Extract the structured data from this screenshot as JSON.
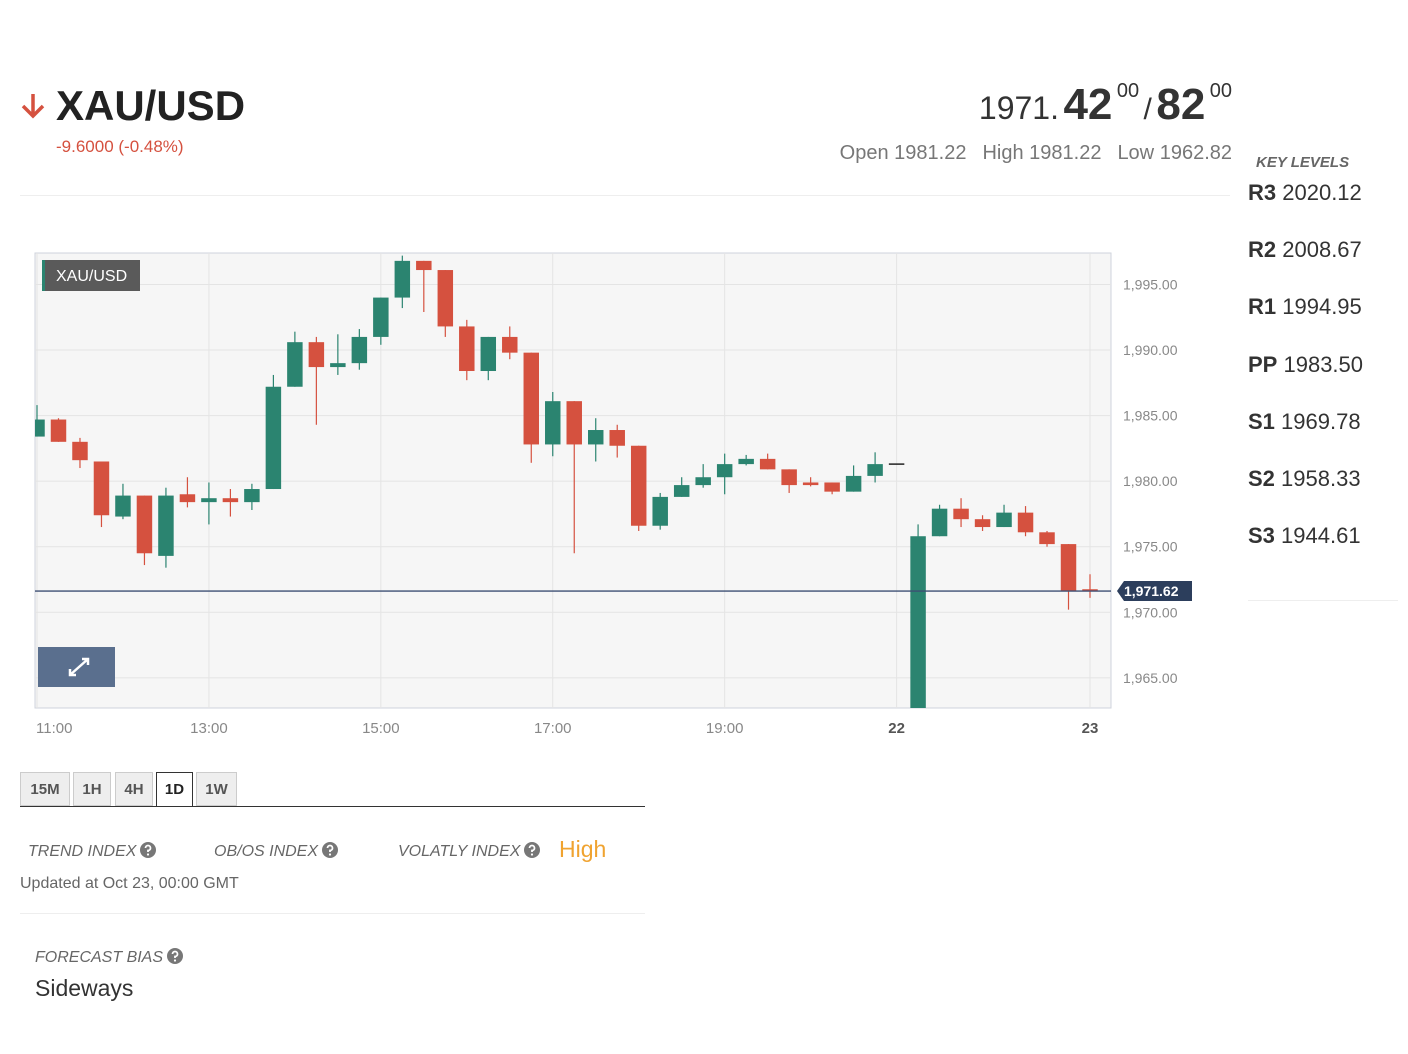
{
  "header": {
    "symbol": "XAU/USD",
    "change": "-9.6000 (-0.48%)"
  },
  "quote": {
    "bid_int": "1971.",
    "bid_dec": "42",
    "bid_sup": "00",
    "sep": "/",
    "ask_dec": "82",
    "ask_sup": "00",
    "stats": [
      {
        "label": "Open",
        "value": "1981.22"
      },
      {
        "label": "High",
        "value": "1981.22"
      },
      {
        "label": "Low",
        "value": "1962.82"
      }
    ]
  },
  "key_levels": {
    "title": "KEY LEVELS",
    "levels": [
      {
        "label": "R3",
        "value": "2020.12"
      },
      {
        "label": "R2",
        "value": "2008.67"
      },
      {
        "label": "R1",
        "value": "1994.95"
      },
      {
        "label": "PP",
        "value": "1983.50"
      },
      {
        "label": "S1",
        "value": "1969.78"
      },
      {
        "label": "S2",
        "value": "1958.33"
      },
      {
        "label": "S3",
        "value": "1944.61"
      }
    ]
  },
  "chart_data": {
    "type": "candlestick",
    "title": "XAU/USD",
    "categories": [
      "11:00",
      null,
      null,
      null,
      null,
      null,
      null,
      null,
      "13:00",
      null,
      null,
      null,
      null,
      null,
      null,
      null,
      "15:00",
      null,
      null,
      null,
      null,
      null,
      null,
      null,
      "17:00",
      null,
      null,
      null,
      null,
      null,
      null,
      null,
      "19:00",
      null,
      null,
      null,
      null,
      null,
      null,
      null,
      "22",
      null,
      null,
      null,
      null,
      null,
      null,
      null,
      null,
      "23"
    ],
    "open": [
      1983.4,
      1984.7,
      1983.0,
      1981.5,
      1977.3,
      1978.9,
      1974.3,
      1979.0,
      1978.4,
      1978.7,
      1978.4,
      1979.4,
      1987.2,
      1990.6,
      1988.7,
      1989.0,
      1991.0,
      1994.0,
      1996.8,
      1996.1,
      1991.8,
      1988.4,
      1991.0,
      1989.8,
      1982.8,
      1986.1,
      1982.8,
      1983.9,
      1982.7,
      1976.6,
      1978.8,
      1979.7,
      1980.3,
      1981.3,
      1981.7,
      1980.9,
      1979.9,
      1979.9,
      1979.2,
      1980.4,
      1981.3,
      1962.5,
      1975.8,
      1977.9,
      1977.1,
      1976.5,
      1977.6,
      1976.1,
      1975.2,
      1971.7
    ],
    "high": [
      1985.8,
      1984.8,
      1983.3,
      1981.5,
      1979.8,
      1978.9,
      1979.5,
      1980.3,
      1979.9,
      1979.4,
      1979.8,
      1988.1,
      1991.4,
      1991.0,
      1991.2,
      1991.6,
      1994.0,
      1997.2,
      1996.8,
      1996.1,
      1992.3,
      1991.0,
      1991.8,
      1989.8,
      1986.8,
      1986.1,
      1984.8,
      1984.3,
      1982.7,
      1979.1,
      1980.3,
      1981.3,
      1982.1,
      1982.0,
      1982.1,
      1980.9,
      1980.3,
      1979.9,
      1981.2,
      1982.2,
      1981.3,
      1976.7,
      1978.2,
      1978.7,
      1977.4,
      1978.2,
      1978.1,
      1976.2,
      1975.2,
      1972.9
    ],
    "low": [
      1983.4,
      1983.0,
      1981.0,
      1976.5,
      1977.1,
      1973.6,
      1973.4,
      1978.0,
      1976.7,
      1977.3,
      1977.8,
      1979.4,
      1987.2,
      1984.3,
      1988.1,
      1988.5,
      1990.4,
      1993.2,
      1992.9,
      1991.0,
      1987.7,
      1987.7,
      1989.3,
      1981.4,
      1981.9,
      1974.5,
      1981.5,
      1981.8,
      1976.2,
      1976.3,
      1978.8,
      1979.5,
      1979.0,
      1981.2,
      1980.9,
      1979.1,
      1979.6,
      1979.0,
      1979.2,
      1979.9,
      1981.3,
      1962.5,
      1975.8,
      1976.5,
      1976.2,
      1976.5,
      1975.8,
      1975.0,
      1970.2,
      1971.1
    ],
    "close": [
      1984.7,
      1983.0,
      1981.6,
      1977.4,
      1978.9,
      1974.5,
      1978.9,
      1978.4,
      1978.7,
      1978.4,
      1979.4,
      1987.2,
      1990.6,
      1988.7,
      1989.0,
      1991.0,
      1994.0,
      1996.8,
      1996.1,
      1991.8,
      1988.4,
      1991.0,
      1989.8,
      1982.8,
      1986.1,
      1982.8,
      1983.9,
      1982.7,
      1976.6,
      1978.8,
      1979.7,
      1980.3,
      1981.3,
      1981.7,
      1980.9,
      1979.7,
      1979.7,
      1979.2,
      1980.4,
      1981.3,
      1981.3,
      1975.8,
      1977.9,
      1977.1,
      1976.5,
      1977.6,
      1976.1,
      1975.2,
      1971.6,
      1971.62
    ],
    "up_color": "#2b8470",
    "down_color": "#d5513f",
    "flat_color": "#222222",
    "ylim": [
      1962.7,
      1997.4
    ],
    "yticks": [
      {
        "value": 1965,
        "label": "1,965.00"
      },
      {
        "value": 1970,
        "label": "1,970.00"
      },
      {
        "value": 1975,
        "label": "1,975.00"
      },
      {
        "value": 1980,
        "label": "1,980.00"
      },
      {
        "value": 1985,
        "label": "1,985.00"
      },
      {
        "value": 1990,
        "label": "1,990.00"
      },
      {
        "value": 1995,
        "label": "1,995.00"
      }
    ],
    "last_price": {
      "value": 1971.62,
      "label": "1,971.62"
    },
    "grid": true
  },
  "timeframes": {
    "options": [
      "15M",
      "1H",
      "4H",
      "1D",
      "1W"
    ],
    "active": 3
  },
  "indices": {
    "trend": "TREND INDEX",
    "obos": "OB/OS INDEX",
    "volatility": "VOLATLY INDEX",
    "volatility_value": "High",
    "updated": "Updated at Oct 23, 00:00 GMT"
  },
  "forecast": {
    "label": "FORECAST BIAS",
    "value": "Sideways"
  }
}
